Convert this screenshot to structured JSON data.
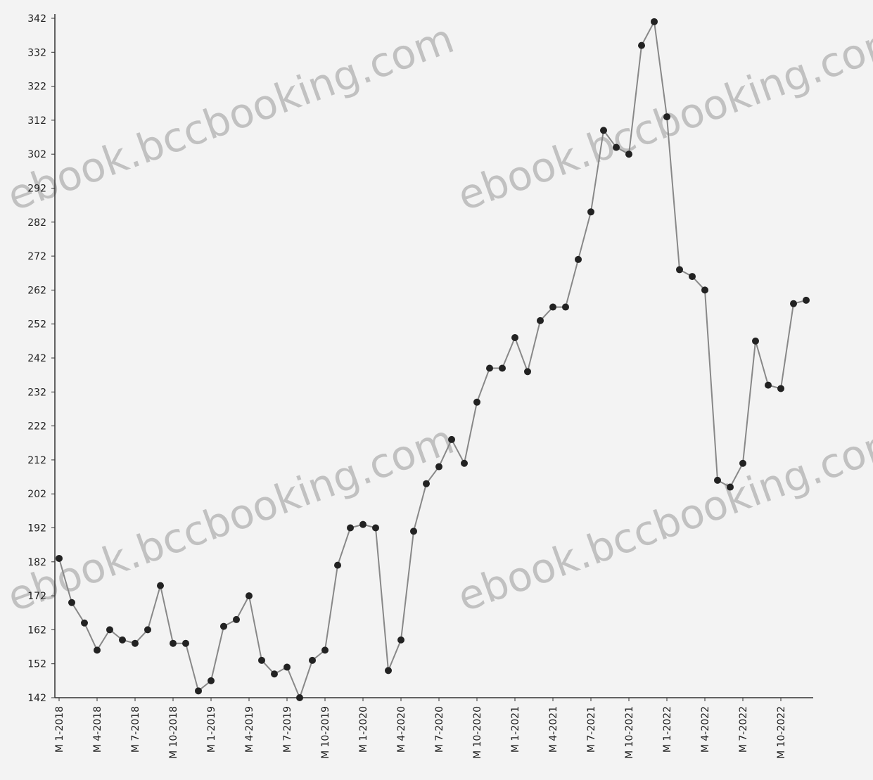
{
  "chart_data": {
    "type": "line",
    "title": "",
    "xlabel": "",
    "ylabel": "",
    "ylim": [
      142,
      342
    ],
    "y_ticks": [
      142,
      152,
      162,
      172,
      182,
      192,
      202,
      212,
      222,
      232,
      242,
      252,
      262,
      272,
      282,
      292,
      302,
      312,
      322,
      332,
      342
    ],
    "x_tick_labels": [
      "M 1-2018",
      "M 4-2018",
      "M 7-2018",
      "M 10-2018",
      "M 1-2019",
      "M 4-2019",
      "M 7-2019",
      "M 10-2019",
      "M 1-2020",
      "M 4-2020",
      "M 7-2020",
      "M 10-2020",
      "M 1-2021",
      "M 4-2021",
      "M 7-2021",
      "M 10-2021",
      "M 1-2022",
      "M 4-2022",
      "M 7-2022",
      "M 10-2022"
    ],
    "x_tick_interval_months": 3,
    "grid": false,
    "series": [
      {
        "name": "",
        "color": "#888888",
        "marker_color": "#222222",
        "points": [
          {
            "x": "M 1-2018",
            "y": 183
          },
          {
            "x": "M 2-2018",
            "y": 170
          },
          {
            "x": "M 3-2018",
            "y": 164
          },
          {
            "x": "M 4-2018",
            "y": 156
          },
          {
            "x": "M 5-2018",
            "y": 162
          },
          {
            "x": "M 6-2018",
            "y": 159
          },
          {
            "x": "M 7-2018",
            "y": 158
          },
          {
            "x": "M 8-2018",
            "y": 162
          },
          {
            "x": "M 9-2018",
            "y": 175
          },
          {
            "x": "M 10-2018",
            "y": 158
          },
          {
            "x": "M 11-2018",
            "y": 158
          },
          {
            "x": "M 12-2018",
            "y": 144
          },
          {
            "x": "M 1-2019",
            "y": 147
          },
          {
            "x": "M 2-2019",
            "y": 163
          },
          {
            "x": "M 3-2019",
            "y": 165
          },
          {
            "x": "M 4-2019",
            "y": 172
          },
          {
            "x": "M 5-2019",
            "y": 153
          },
          {
            "x": "M 6-2019",
            "y": 149
          },
          {
            "x": "M 7-2019",
            "y": 151
          },
          {
            "x": "M 8-2019",
            "y": 142
          },
          {
            "x": "M 9-2019",
            "y": 153
          },
          {
            "x": "M 10-2019",
            "y": 156
          },
          {
            "x": "M 11-2019",
            "y": 181
          },
          {
            "x": "M 12-2019",
            "y": 192
          },
          {
            "x": "M 1-2020",
            "y": 193
          },
          {
            "x": "M 2-2020",
            "y": 192
          },
          {
            "x": "M 3-2020",
            "y": 150
          },
          {
            "x": "M 4-2020",
            "y": 159
          },
          {
            "x": "M 5-2020",
            "y": 191
          },
          {
            "x": "M 6-2020",
            "y": 205
          },
          {
            "x": "M 7-2020",
            "y": 210
          },
          {
            "x": "M 8-2020",
            "y": 218
          },
          {
            "x": "M 9-2020",
            "y": 211
          },
          {
            "x": "M 10-2020",
            "y": 229
          },
          {
            "x": "M 11-2020",
            "y": 239
          },
          {
            "x": "M 12-2020",
            "y": 239
          },
          {
            "x": "M 1-2021",
            "y": 248
          },
          {
            "x": "M 2-2021",
            "y": 238
          },
          {
            "x": "M 3-2021",
            "y": 253
          },
          {
            "x": "M 4-2021",
            "y": 257
          },
          {
            "x": "M 5-2021",
            "y": 257
          },
          {
            "x": "M 6-2021",
            "y": 271
          },
          {
            "x": "M 7-2021",
            "y": 285
          },
          {
            "x": "M 8-2021",
            "y": 309
          },
          {
            "x": "M 9-2021",
            "y": 304
          },
          {
            "x": "M 10-2021",
            "y": 302
          },
          {
            "x": "M 11-2021",
            "y": 334
          },
          {
            "x": "M 12-2021",
            "y": 341
          },
          {
            "x": "M 1-2022",
            "y": 313
          },
          {
            "x": "M 2-2022",
            "y": 268
          },
          {
            "x": "M 3-2022",
            "y": 266
          },
          {
            "x": "M 4-2022",
            "y": 262
          },
          {
            "x": "M 5-2022",
            "y": 206
          },
          {
            "x": "M 6-2022",
            "y": 204
          },
          {
            "x": "M 7-2022",
            "y": 211
          },
          {
            "x": "M 8-2022",
            "y": 247
          },
          {
            "x": "M 9-2022",
            "y": 234
          },
          {
            "x": "M 10-2022",
            "y": 233
          },
          {
            "x": "M 11-2022",
            "y": 258
          },
          {
            "x": "M 12-2022",
            "y": 259
          }
        ]
      }
    ]
  },
  "watermarks": [
    {
      "text": "ebook.bccbooking.com"
    },
    {
      "text": "ebook.bccbooking.com"
    },
    {
      "text": "ebook.bccbooking.com"
    },
    {
      "text": "ebook.bccbooking.com"
    }
  ]
}
